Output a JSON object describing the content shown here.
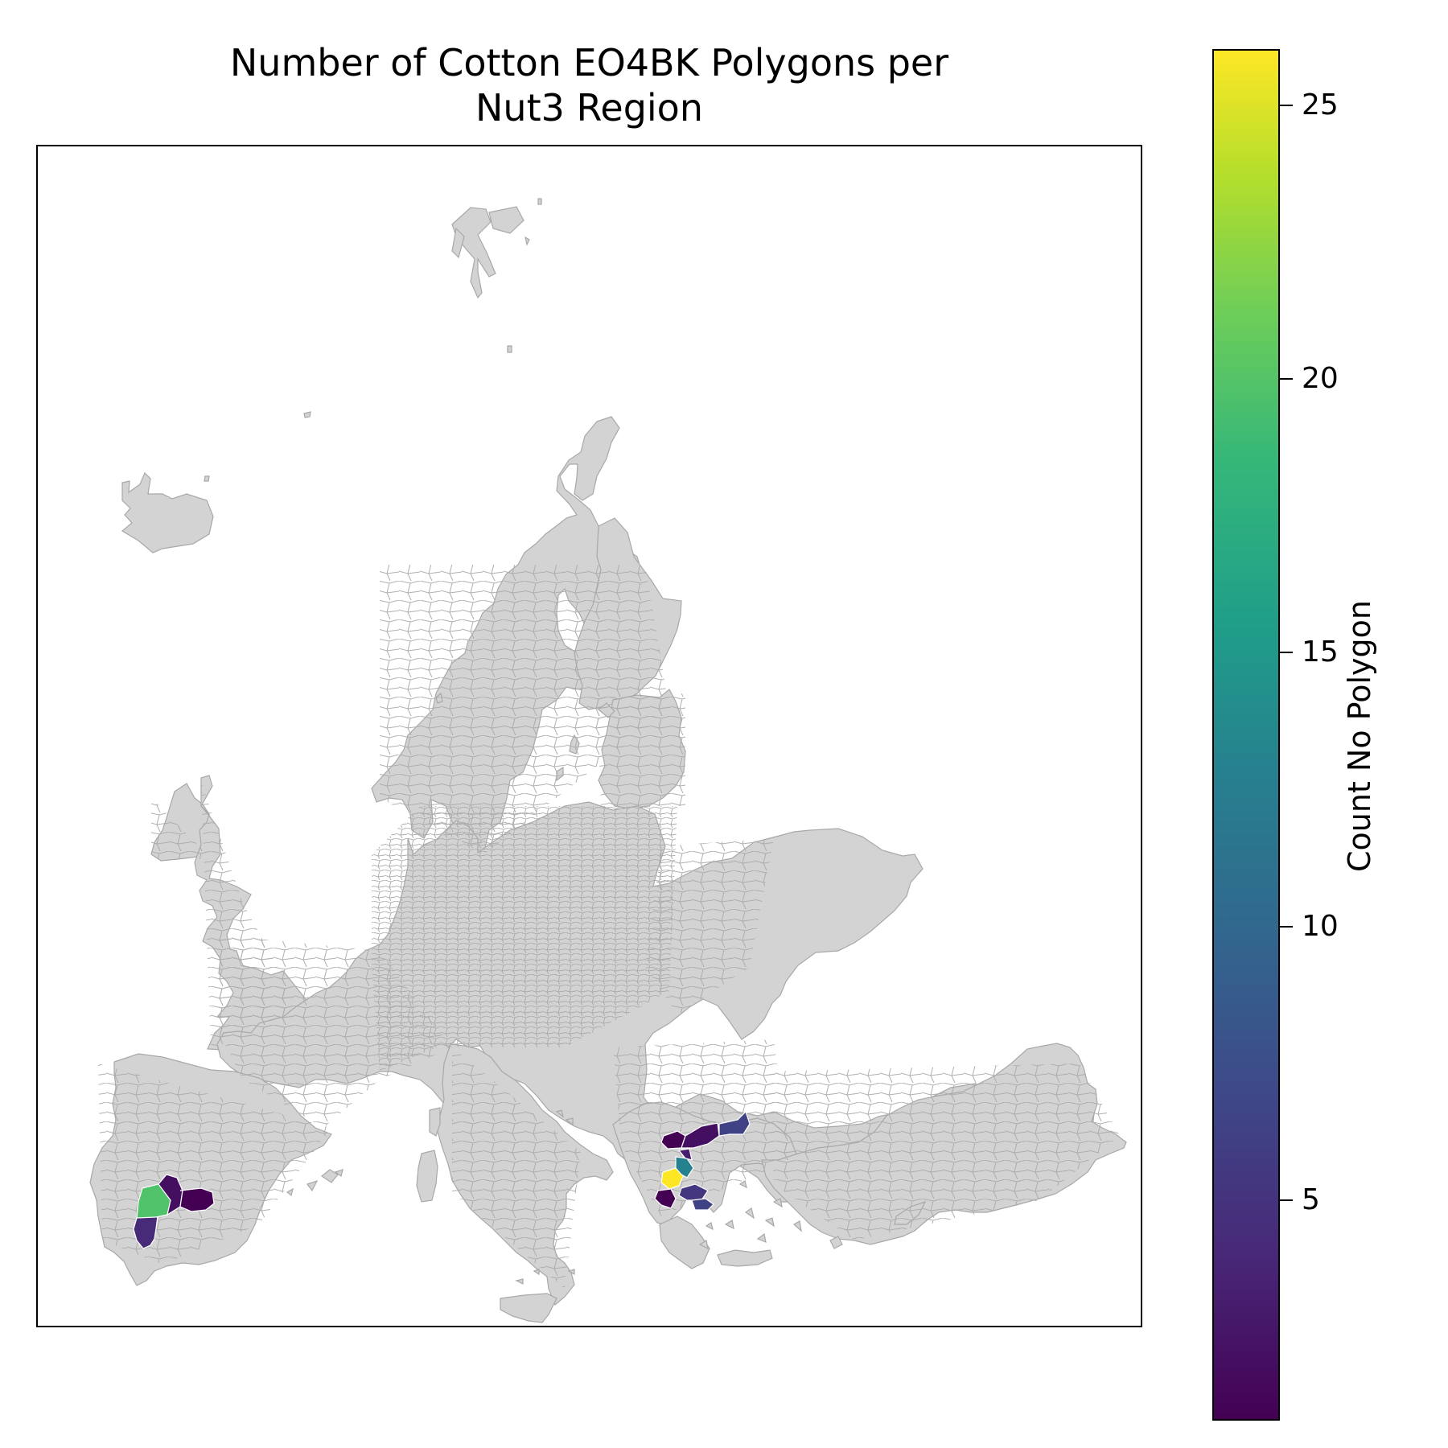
{
  "title": {
    "line1": "Number of Cotton EO4BK Polygons per",
    "line2": "Nut3 Region"
  },
  "map": {
    "base_fill": "#d3d3d3",
    "edge_color": "#a8a8a8",
    "regions": [
      {
        "area": "Spain-Andalusia-Huelva",
        "count": 4
      },
      {
        "area": "Spain-Andalusia-Sevilla",
        "count": 19
      },
      {
        "area": "Spain-Andalusia-Cordoba",
        "count": 2
      },
      {
        "area": "Spain-Andalusia-Jaen",
        "count": 1
      },
      {
        "area": "Greece-Macedonia-West",
        "count": 1
      },
      {
        "area": "Greece-Macedonia-Central",
        "count": 2
      },
      {
        "area": "Greece-Thrace",
        "count": 6
      },
      {
        "area": "Greece-Thessaly-Larisa",
        "count": 26
      },
      {
        "area": "Greece-Thessaly-Magnesia",
        "count": 12
      },
      {
        "area": "Greece-Thessaly-Karditsa",
        "count": 3
      },
      {
        "area": "Greece-Central-Fthiotida",
        "count": 5
      },
      {
        "area": "Greece-Central-Viotia",
        "count": 6
      },
      {
        "area": "Greece-West-Aitoloakarnania",
        "count": 1
      }
    ]
  },
  "colorbar": {
    "label": "Count No Polygon",
    "min": 1,
    "max": 26,
    "ticks": [
      {
        "value": 5,
        "label": "5"
      },
      {
        "value": 10,
        "label": "10"
      },
      {
        "value": 15,
        "label": "15"
      },
      {
        "value": 20,
        "label": "20"
      },
      {
        "value": 25,
        "label": "25"
      }
    ],
    "colormap": "viridis"
  }
}
